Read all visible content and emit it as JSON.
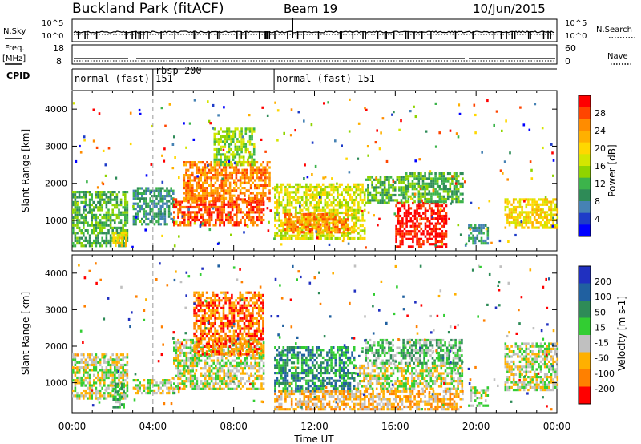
{
  "header": {
    "station": "Buckland Park (fitACF)",
    "beam": "Beam 19",
    "date": "10/Jun/2015"
  },
  "strips": {
    "nsky_label": "N.Sky",
    "nsearch_label": "N.Search",
    "nsky_ticks": [
      "10^5",
      "10^0"
    ],
    "nsearch_ticks": [
      "10^5",
      "10^0"
    ],
    "freq_label": "Freq.",
    "freq_unit": "[MHz]",
    "freq_ticks": [
      "18",
      "8"
    ],
    "nave_label": "Nave",
    "nave_ticks": [
      "60",
      "0"
    ],
    "cpid_label": "CPID",
    "programs": [
      {
        "label": "normal (fast) 151",
        "start_hour": 0.0,
        "end_hour": 4.0
      },
      {
        "label": "rbsp 200",
        "start_hour": 4.0,
        "end_hour": 10.0
      },
      {
        "label": "normal (fast) 151",
        "start_hour": 10.0,
        "end_hour": 24.0
      }
    ]
  },
  "power_colorbar": {
    "label": "Power [dB]",
    "ticks": [
      "28",
      "24",
      "20",
      "16",
      "12",
      "8",
      "4"
    ],
    "colors": [
      "#ff0000",
      "#ff4500",
      "#ff8c00",
      "#ffb000",
      "#ffd700",
      "#d4e600",
      "#8fd400",
      "#3cb44b",
      "#2e8b57",
      "#4682b4",
      "#1e3cc8",
      "#0000ff"
    ]
  },
  "velocity_colorbar": {
    "label": "Velocity [m s-1]",
    "ticks": [
      "200",
      "100",
      "50",
      "15",
      "-15",
      "-50",
      "-100",
      "-200"
    ],
    "colors": [
      "#2030c0",
      "#2060a0",
      "#2e8b57",
      "#32cd32",
      "#c0c0c0",
      "#ffb000",
      "#ff8000",
      "#ff0000"
    ]
  },
  "chart_data": [
    {
      "type": "heatmap",
      "title": "Power",
      "xlabel": "",
      "ylabel": "Slant Range [km]",
      "xlim_hours": [
        0,
        24
      ],
      "ylim": [
        180,
        4500
      ],
      "y_ticks": [
        1000,
        2000,
        3000,
        4000
      ],
      "x_ticks_hours": [
        0,
        4,
        8,
        12,
        16,
        20,
        24
      ],
      "x_tick_labels": [
        "00:00",
        "04:00",
        "08:00",
        "12:00",
        "16:00",
        "20:00",
        "00:00"
      ],
      "regions": [
        {
          "x0": 0.0,
          "x1": 2.7,
          "y0": 300,
          "y1": 1800,
          "level": 7
        },
        {
          "x0": 2.0,
          "x1": 2.7,
          "y0": 300,
          "y1": 700,
          "level": 4
        },
        {
          "x0": 3.0,
          "x1": 5.0,
          "y0": 900,
          "y1": 1900,
          "level": 8
        },
        {
          "x0": 5.0,
          "x1": 9.5,
          "y0": 900,
          "y1": 1600,
          "level": 1
        },
        {
          "x0": 5.5,
          "x1": 9.8,
          "y0": 1500,
          "y1": 2600,
          "level": 2
        },
        {
          "x0": 7.0,
          "x1": 9.0,
          "y0": 2500,
          "y1": 3500,
          "level": 6
        },
        {
          "x0": 10.0,
          "x1": 14.5,
          "y0": 500,
          "y1": 2000,
          "level": 5
        },
        {
          "x0": 10.5,
          "x1": 14.0,
          "y0": 700,
          "y1": 1200,
          "level": 2
        },
        {
          "x0": 14.5,
          "x1": 16.5,
          "y0": 1500,
          "y1": 2200,
          "level": 7
        },
        {
          "x0": 16.0,
          "x1": 18.5,
          "y0": 300,
          "y1": 1500,
          "level": 0
        },
        {
          "x0": 16.5,
          "x1": 19.3,
          "y0": 1500,
          "y1": 2300,
          "level": 7
        },
        {
          "x0": 19.6,
          "x1": 20.6,
          "y0": 400,
          "y1": 900,
          "level": 8
        },
        {
          "x0": 21.4,
          "x1": 24.0,
          "y0": 800,
          "y1": 1600,
          "level": 4
        }
      ]
    },
    {
      "type": "heatmap",
      "title": "Velocity",
      "xlabel": "Time UT",
      "ylabel": "Slant Range [km]",
      "xlim_hours": [
        0,
        24
      ],
      "ylim": [
        180,
        4500
      ],
      "y_ticks": [
        1000,
        2000,
        3000,
        4000
      ],
      "x_ticks_hours": [
        0,
        4,
        8,
        12,
        16,
        20,
        24
      ],
      "x_tick_labels": [
        "00:00",
        "04:00",
        "08:00",
        "12:00",
        "16:00",
        "20:00",
        "00:00"
      ],
      "regions": [
        {
          "x0": 0.0,
          "x1": 2.7,
          "y0": 600,
          "y1": 1800,
          "level": 4
        },
        {
          "x0": 2.0,
          "x1": 2.6,
          "y0": 300,
          "y1": 1000,
          "level": 3
        },
        {
          "x0": 3.0,
          "x1": 5.0,
          "y0": 700,
          "y1": 1100,
          "level": 4
        },
        {
          "x0": 5.0,
          "x1": 9.5,
          "y0": 800,
          "y1": 2200,
          "level": 4
        },
        {
          "x0": 6.0,
          "x1": 9.5,
          "y0": 1800,
          "y1": 3500,
          "level": 6
        },
        {
          "x0": 10.0,
          "x1": 14.0,
          "y0": 800,
          "y1": 2000,
          "level": 2
        },
        {
          "x0": 10.0,
          "x1": 19.3,
          "y0": 300,
          "y1": 800,
          "level": 5
        },
        {
          "x0": 14.0,
          "x1": 19.3,
          "y0": 800,
          "y1": 1500,
          "level": 4
        },
        {
          "x0": 14.5,
          "x1": 19.3,
          "y0": 1500,
          "y1": 2200,
          "level": 3
        },
        {
          "x0": 19.6,
          "x1": 20.6,
          "y0": 400,
          "y1": 900,
          "level": 4
        },
        {
          "x0": 21.4,
          "x1": 24.0,
          "y0": 800,
          "y1": 2100,
          "level": 4
        }
      ]
    }
  ]
}
